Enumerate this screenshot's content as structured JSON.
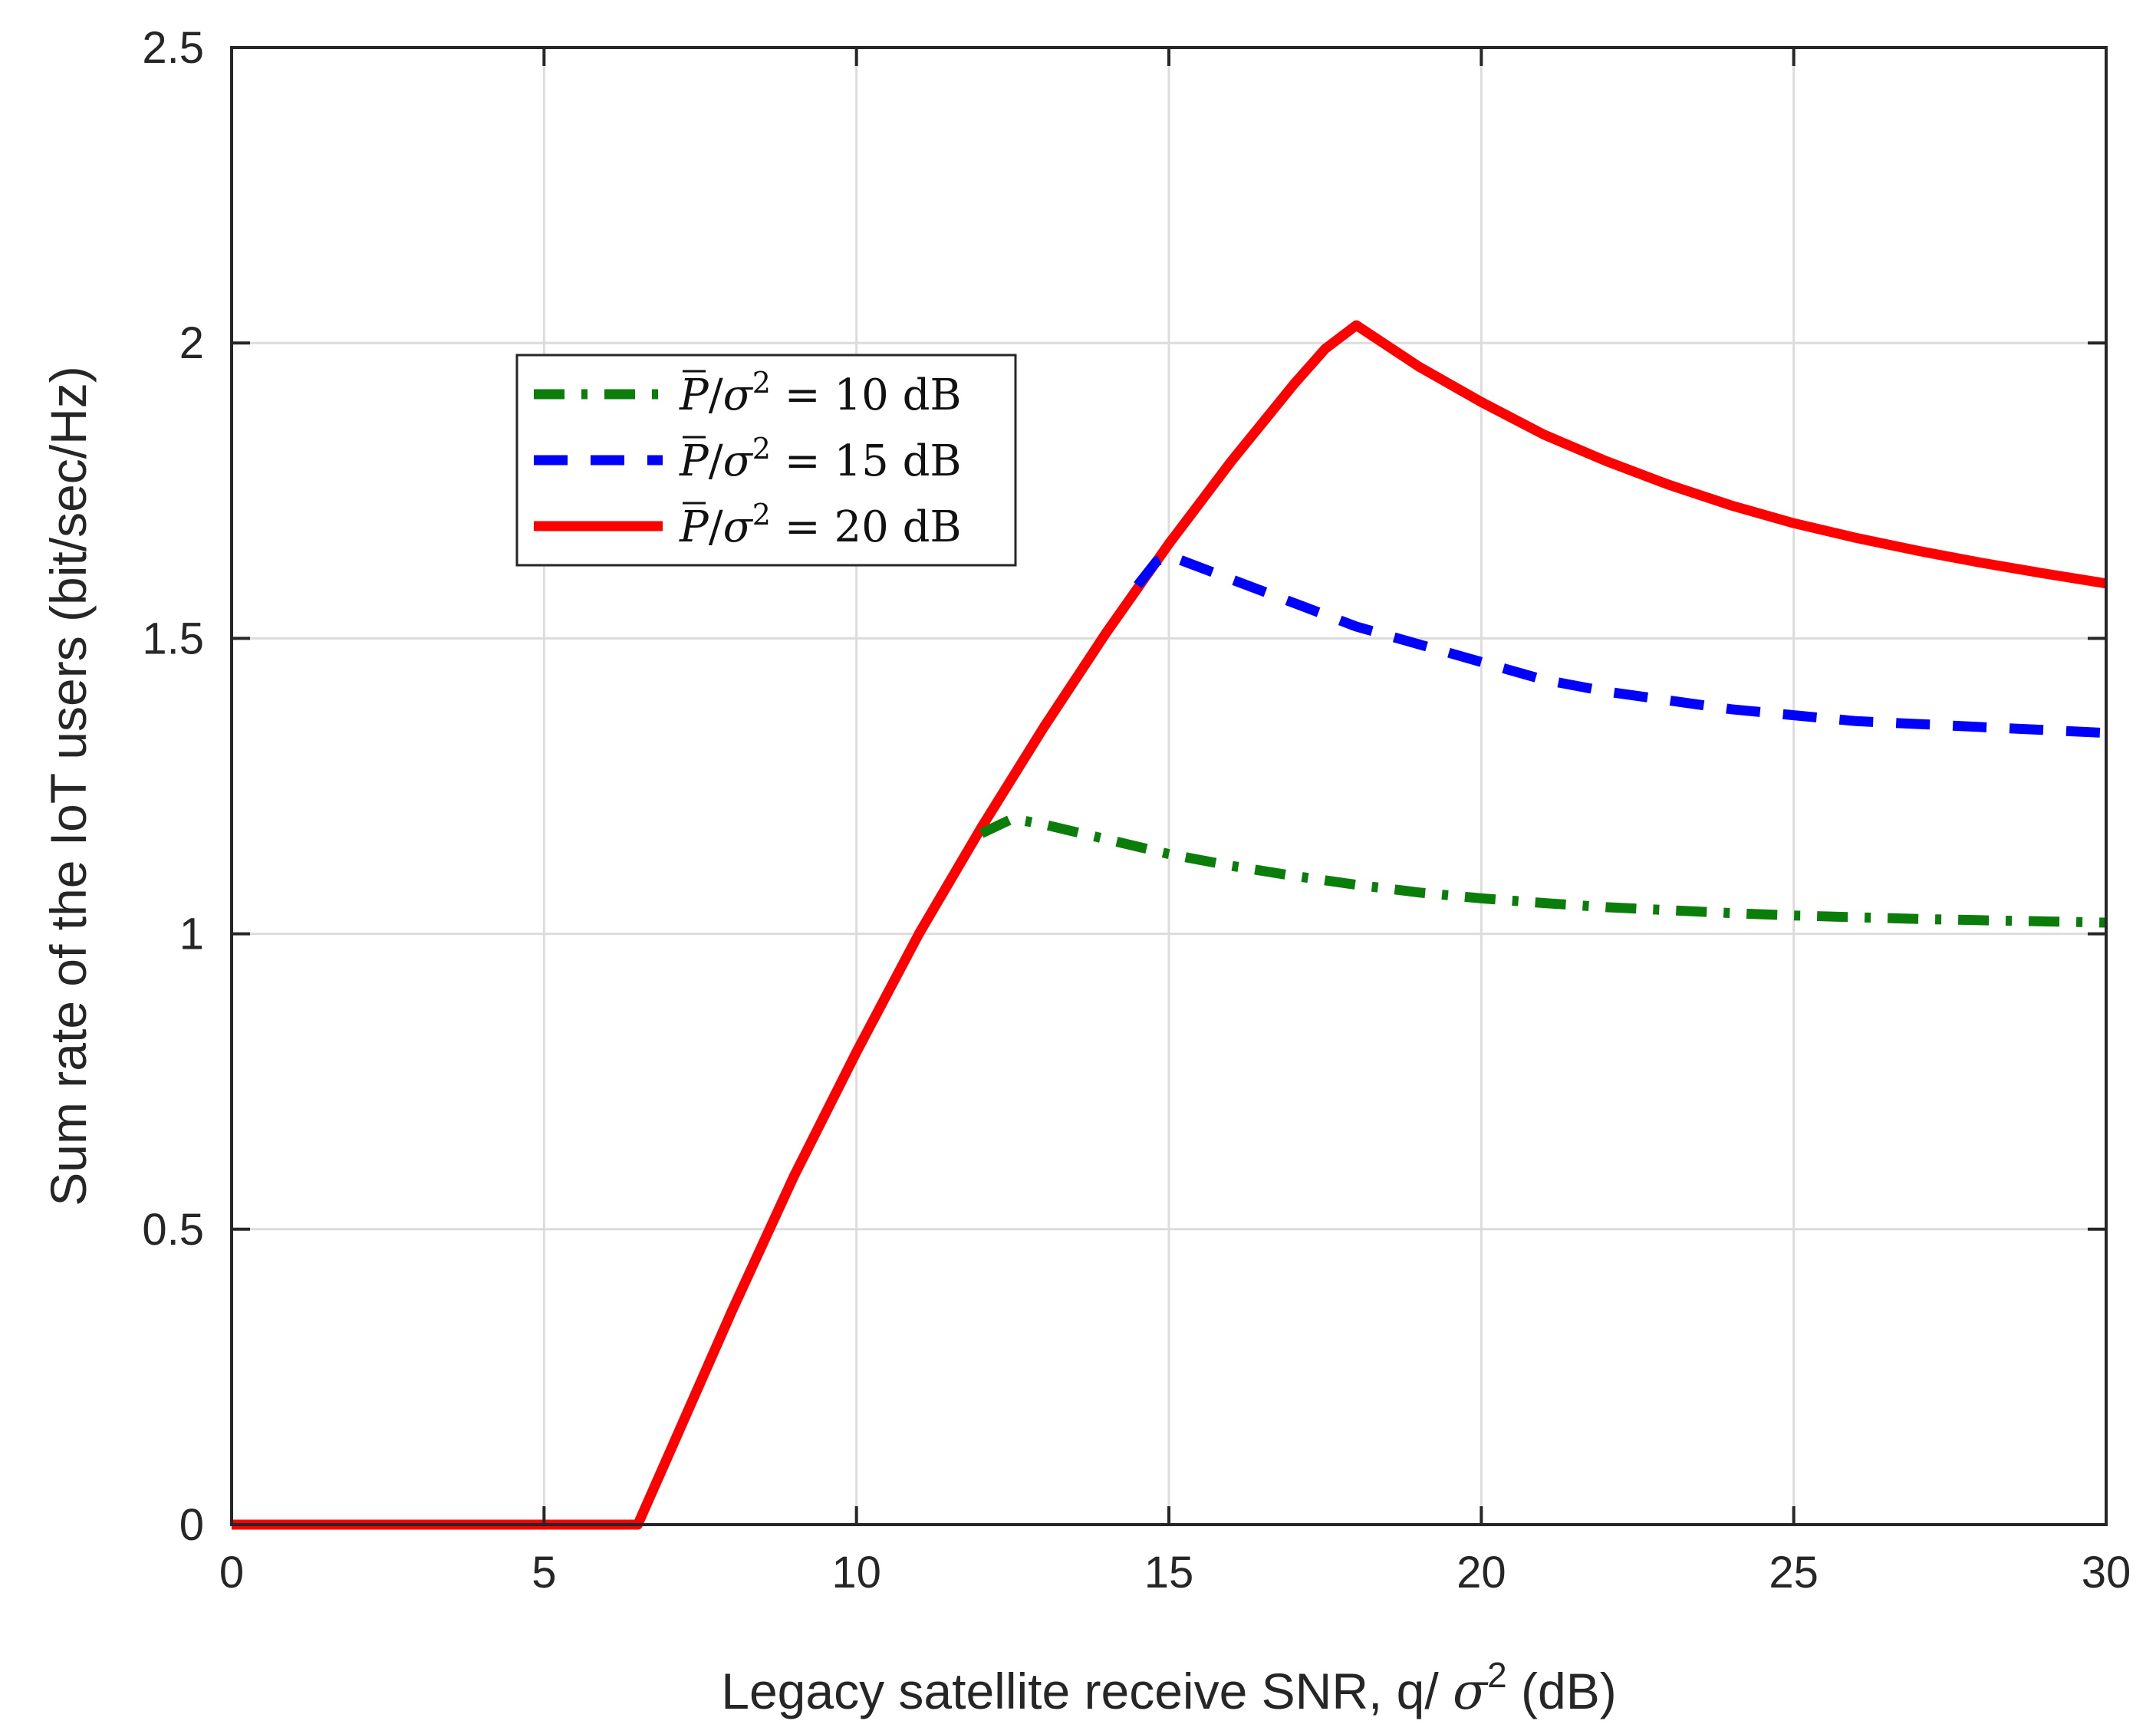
{
  "chart_data": {
    "type": "line",
    "title": "",
    "xlabel": {
      "text": "Legacy satellite receive SNR, q/ ",
      "symbol": "σ",
      "superscript": "2",
      "suffix": " (dB)"
    },
    "ylabel": "Sum rate of the IoT users (bit/sec/Hz)",
    "xlim": [
      0,
      30
    ],
    "ylim": [
      0,
      2.5
    ],
    "xticks": [
      0,
      5,
      10,
      15,
      20,
      25,
      30
    ],
    "xtick_labels": [
      "0",
      "5",
      "10",
      "15",
      "20",
      "25",
      "30"
    ],
    "yticks": [
      0,
      0.5,
      1,
      1.5,
      2,
      2.5
    ],
    "ytick_labels": [
      "0",
      "0.5",
      "1",
      "1.5",
      "2",
      "2.5"
    ],
    "grid": true,
    "legend_position": "upper-left",
    "series": [
      {
        "name": "P̄/σ² = 10 dB",
        "name_parts": {
          "var": "P",
          "den": "σ",
          "sup": "2",
          "rest": " = 10 dB"
        },
        "color": "#0a7d0a",
        "style": "dashdot",
        "x": [
          12.0,
          12.5,
          13,
          14,
          15,
          16,
          17,
          18,
          19,
          20,
          21,
          22,
          23,
          24,
          25,
          26,
          27,
          28,
          29,
          30
        ],
        "y": [
          1.17,
          1.195,
          1.185,
          1.16,
          1.135,
          1.115,
          1.098,
          1.083,
          1.07,
          1.06,
          1.052,
          1.045,
          1.04,
          1.035,
          1.031,
          1.028,
          1.025,
          1.023,
          1.021,
          1.019
        ]
      },
      {
        "name": "P̄/σ² = 15 dB",
        "name_parts": {
          "var": "P",
          "den": "σ",
          "sup": "2",
          "rest": " = 15 dB"
        },
        "color": "#0000ff",
        "style": "dashed",
        "x": [
          14.5,
          14.8,
          15,
          16,
          17,
          18,
          19,
          20,
          21,
          22,
          23,
          24,
          25,
          26,
          27,
          28,
          29,
          30
        ],
        "y": [
          1.59,
          1.63,
          1.64,
          1.6,
          1.56,
          1.52,
          1.49,
          1.46,
          1.43,
          1.41,
          1.395,
          1.38,
          1.37,
          1.36,
          1.355,
          1.35,
          1.345,
          1.34
        ]
      },
      {
        "name": "P̄/σ² = 20 dB",
        "name_parts": {
          "var": "P",
          "den": "σ",
          "sup": "2",
          "rest": " = 20 dB"
        },
        "color": "#ff0000",
        "style": "solid",
        "x": [
          0,
          6.5,
          7,
          8,
          9,
          10,
          11,
          12,
          13,
          14,
          15,
          16,
          17,
          17.5,
          18,
          19,
          20,
          21,
          22,
          23,
          24,
          25,
          26,
          27,
          28,
          29,
          30
        ],
        "y": [
          0,
          0,
          0.12,
          0.36,
          0.59,
          0.8,
          1.0,
          1.18,
          1.35,
          1.51,
          1.66,
          1.8,
          1.93,
          1.99,
          2.03,
          1.96,
          1.9,
          1.845,
          1.8,
          1.76,
          1.725,
          1.695,
          1.67,
          1.648,
          1.628,
          1.61,
          1.593
        ]
      }
    ]
  }
}
